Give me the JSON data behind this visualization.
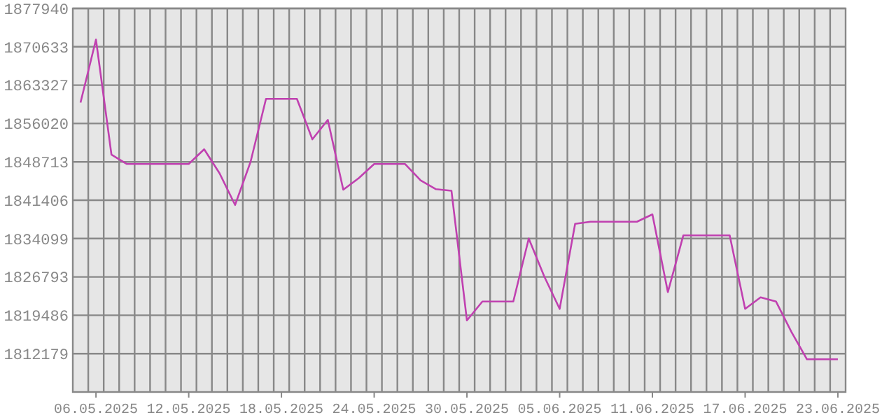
{
  "chart_data": {
    "type": "line",
    "x": [
      "2025-05-05",
      "2025-05-06",
      "2025-05-07",
      "2025-05-08",
      "2025-05-09",
      "2025-05-10",
      "2025-05-11",
      "2025-05-12",
      "2025-05-13",
      "2025-05-14",
      "2025-05-15",
      "2025-05-16",
      "2025-05-17",
      "2025-05-18",
      "2025-05-19",
      "2025-05-20",
      "2025-05-21",
      "2025-05-22",
      "2025-05-23",
      "2025-05-24",
      "2025-05-25",
      "2025-05-26",
      "2025-05-27",
      "2025-05-28",
      "2025-05-29",
      "2025-05-30",
      "2025-05-31",
      "2025-06-01",
      "2025-06-02",
      "2025-06-03",
      "2025-06-04",
      "2025-06-05",
      "2025-06-06",
      "2025-06-07",
      "2025-06-08",
      "2025-06-09",
      "2025-06-10",
      "2025-06-11",
      "2025-06-12",
      "2025-06-13",
      "2025-06-14",
      "2025-06-15",
      "2025-06-16",
      "2025-06-17",
      "2025-06-18",
      "2025-06-19",
      "2025-06-20",
      "2025-06-21",
      "2025-06-22",
      "2025-06-23"
    ],
    "series": [
      {
        "color": "#c040b0",
        "values": [
          1860000,
          1872000,
          1850100,
          1848300,
          1848300,
          1848300,
          1848300,
          1848300,
          1851100,
          1846500,
          1840500,
          1848700,
          1860700,
          1860700,
          1860700,
          1853000,
          1856700,
          1843400,
          1845600,
          1848300,
          1848300,
          1848300,
          1845200,
          1843500,
          1843200,
          1818500,
          1822100,
          1822100,
          1822100,
          1834100,
          1826900,
          1820700,
          1836900,
          1837300,
          1837300,
          1837300,
          1837300,
          1838700,
          1823900,
          1834700,
          1834700,
          1834700,
          1834700,
          1820700,
          1822900,
          1822100,
          1816300,
          1811100,
          1811100,
          1811100
        ]
      }
    ],
    "xlim": [
      "2025-05-04T12:00",
      "2025-06-23T12:00"
    ],
    "xticks": [
      {
        "value": "2025-05-06",
        "label": "06.05.2025"
      },
      {
        "value": "2025-05-12",
        "label": "12.05.2025"
      },
      {
        "value": "2025-05-18",
        "label": "18.05.2025"
      },
      {
        "value": "2025-05-24",
        "label": "24.05.2025"
      },
      {
        "value": "2025-05-30",
        "label": "30.05.2025"
      },
      {
        "value": "2025-06-05",
        "label": "05.06.2025"
      },
      {
        "value": "2025-06-11",
        "label": "11.06.2025"
      },
      {
        "value": "2025-06-17",
        "label": "17.06.2025"
      },
      {
        "value": "2025-06-23",
        "label": "23.06.2025"
      },
      {
        "value": "2025-05-05T12:00",
        "label": null
      },
      {
        "value": "2025-05-06T12:00",
        "label": null
      },
      {
        "value": "2025-05-07T12:00",
        "label": null
      },
      {
        "value": "2025-05-08T12:00",
        "label": null
      },
      {
        "value": "2025-05-09T12:00",
        "label": null
      },
      {
        "value": "2025-05-10T12:00",
        "label": null
      },
      {
        "value": "2025-05-11T12:00",
        "label": null
      },
      {
        "value": "2025-05-12T12:00",
        "label": null
      },
      {
        "value": "2025-05-13T12:00",
        "label": null
      },
      {
        "value": "2025-05-14T12:00",
        "label": null
      },
      {
        "value": "2025-05-15T12:00",
        "label": null
      },
      {
        "value": "2025-05-16T12:00",
        "label": null
      },
      {
        "value": "2025-05-17T12:00",
        "label": null
      },
      {
        "value": "2025-05-18T12:00",
        "label": null
      },
      {
        "value": "2025-05-19T12:00",
        "label": null
      },
      {
        "value": "2025-05-20T12:00",
        "label": null
      },
      {
        "value": "2025-05-21T12:00",
        "label": null
      },
      {
        "value": "2025-05-22T12:00",
        "label": null
      },
      {
        "value": "2025-05-23T12:00",
        "label": null
      },
      {
        "value": "2025-05-24T12:00",
        "label": null
      },
      {
        "value": "2025-05-25T12:00",
        "label": null
      },
      {
        "value": "2025-05-26T12:00",
        "label": null
      },
      {
        "value": "2025-05-27T12:00",
        "label": null
      },
      {
        "value": "2025-05-28T12:00",
        "label": null
      },
      {
        "value": "2025-05-29T12:00",
        "label": null
      },
      {
        "value": "2025-05-30T12:00",
        "label": null
      },
      {
        "value": "2025-05-31T12:00",
        "label": null
      },
      {
        "value": "2025-06-01T12:00",
        "label": null
      },
      {
        "value": "2025-06-02T12:00",
        "label": null
      },
      {
        "value": "2025-06-03T12:00",
        "label": null
      },
      {
        "value": "2025-06-04T12:00",
        "label": null
      },
      {
        "value": "2025-06-05T12:00",
        "label": null
      },
      {
        "value": "2025-06-06T12:00",
        "label": null
      },
      {
        "value": "2025-06-07T12:00",
        "label": null
      },
      {
        "value": "2025-06-08T12:00",
        "label": null
      },
      {
        "value": "2025-06-09T12:00",
        "label": null
      },
      {
        "value": "2025-06-10T12:00",
        "label": null
      },
      {
        "value": "2025-06-11T12:00",
        "label": null
      },
      {
        "value": "2025-06-12T12:00",
        "label": null
      },
      {
        "value": "2025-06-13T12:00",
        "label": null
      },
      {
        "value": "2025-06-14T12:00",
        "label": null
      },
      {
        "value": "2025-06-15T12:00",
        "label": null
      },
      {
        "value": "2025-06-16T12:00",
        "label": null
      },
      {
        "value": "2025-06-17T12:00",
        "label": null
      },
      {
        "value": "2025-06-18T12:00",
        "label": null
      },
      {
        "value": "2025-06-19T12:00",
        "label": null
      },
      {
        "value": "2025-06-20T12:00",
        "label": null
      },
      {
        "value": "2025-06-21T12:00",
        "label": null
      },
      {
        "value": "2025-06-22T12:00",
        "label": null
      }
    ],
    "ylim": [
      1804872,
      1877940
    ],
    "yticks": [
      1812179,
      1819486,
      1826793,
      1834099,
      1841406,
      1848713,
      1856020,
      1863327,
      1870633,
      1877940
    ],
    "grid": true,
    "marker": "none",
    "line_style": "solid"
  }
}
